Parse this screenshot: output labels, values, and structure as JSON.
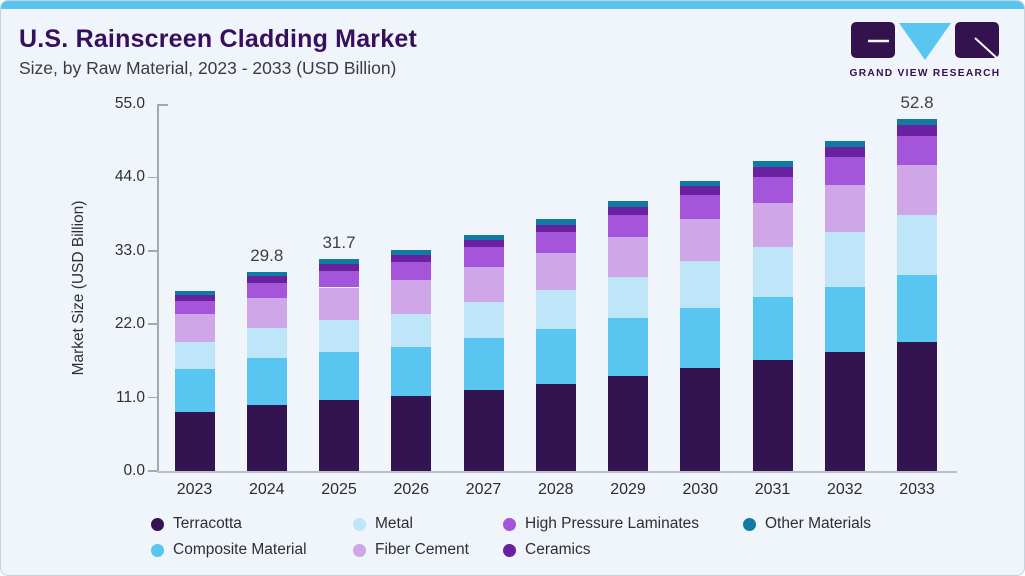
{
  "header": {
    "title": "U.S. Rainscreen Cladding Market",
    "subtitle": "Size, by Raw Material, 2023 - 2033 (USD Billion)"
  },
  "logo": {
    "text": "GRAND VIEW RESEARCH"
  },
  "colors": {
    "accent_bar": "#5ac4f0",
    "background": "#eff5fa",
    "brand_purple": "#33124e",
    "title_text": "#36105c",
    "axis_line": "#a3a9b2"
  },
  "chart_data": {
    "type": "bar",
    "stacked": true,
    "title": "",
    "xlabel": "",
    "ylabel": "Market Size (USD Billion)",
    "ylim": [
      0,
      55
    ],
    "y_ticks": [
      "0.0",
      "11.0",
      "22.0",
      "33.0",
      "44.0",
      "55.0"
    ],
    "grid": false,
    "legend_position": "bottom",
    "categories": [
      "2023",
      "2024",
      "2025",
      "2026",
      "2027",
      "2028",
      "2029",
      "2030",
      "2031",
      "2032",
      "2033"
    ],
    "value_labels": [
      "",
      "29.8",
      "31.7",
      "",
      "",
      "",
      "",
      "",
      "",
      "",
      "52.8"
    ],
    "totals": [
      27.0,
      29.8,
      31.7,
      33.1,
      35.3,
      37.7,
      40.4,
      43.5,
      46.4,
      49.4,
      52.8
    ],
    "series": [
      {
        "name": "Terracotta",
        "color": "#331451",
        "values": [
          8.8,
          9.9,
          10.6,
          11.2,
          12.2,
          13.1,
          14.3,
          15.5,
          16.7,
          17.9,
          19.3
        ]
      },
      {
        "name": "Composite Material",
        "color": "#58c6f0",
        "values": [
          6.5,
          7.0,
          7.3,
          7.4,
          7.8,
          8.2,
          8.6,
          9.0,
          9.4,
          9.7,
          10.1
        ]
      },
      {
        "name": "Metal",
        "color": "#bfe6f8",
        "values": [
          4.1,
          4.5,
          4.8,
          5.0,
          5.4,
          5.8,
          6.2,
          6.9,
          7.5,
          8.2,
          8.9
        ]
      },
      {
        "name": "Fiber Cement",
        "color": "#cfa6e8",
        "values": [
          4.1,
          4.5,
          4.8,
          5.0,
          5.2,
          5.6,
          5.9,
          6.3,
          6.6,
          7.1,
          7.5
        ]
      },
      {
        "name": "High Pressure Laminates",
        "color": "#a455d9",
        "values": [
          2.0,
          2.3,
          2.5,
          2.7,
          2.9,
          3.1,
          3.4,
          3.7,
          3.9,
          4.1,
          4.4
        ]
      },
      {
        "name": "Ceramics",
        "color": "#6a21a0",
        "values": [
          0.9,
          1.0,
          1.0,
          1.1,
          1.1,
          1.1,
          1.2,
          1.3,
          1.4,
          1.5,
          1.7
        ]
      },
      {
        "name": "Other Materials",
        "color": "#117aa3",
        "values": [
          0.6,
          0.6,
          0.7,
          0.7,
          0.7,
          0.8,
          0.8,
          0.8,
          0.9,
          0.9,
          0.9
        ]
      }
    ],
    "legend": [
      {
        "label": "Terracotta",
        "color": "#331451"
      },
      {
        "label": "Metal",
        "color": "#bfe6f8"
      },
      {
        "label": "High Pressure Laminates",
        "color": "#a455d9"
      },
      {
        "label": "Other Materials",
        "color": "#117aa3"
      },
      {
        "label": "Composite Material",
        "color": "#58c6f0"
      },
      {
        "label": "Fiber Cement",
        "color": "#cfa6e8"
      },
      {
        "label": "Ceramics",
        "color": "#6a21a0"
      }
    ]
  }
}
